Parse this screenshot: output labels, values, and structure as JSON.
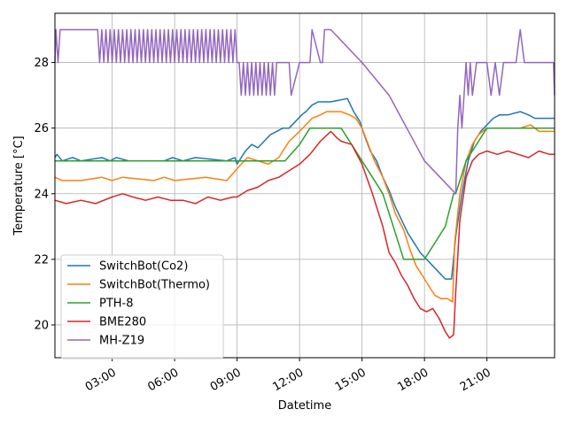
{
  "chart_data": {
    "type": "line",
    "title": "",
    "xlabel": "Datetime",
    "ylabel": "Temperature [°C]",
    "xlim": [
      0.25,
      24.25
    ],
    "ylim": [
      19,
      29.5
    ],
    "grid": true,
    "legend_position": "lower-left",
    "x_ticks": [
      {
        "value": 3,
        "label": "03:00"
      },
      {
        "value": 6,
        "label": "06:00"
      },
      {
        "value": 9,
        "label": "09:00"
      },
      {
        "value": 12,
        "label": "12:00"
      },
      {
        "value": 15,
        "label": "15:00"
      },
      {
        "value": 18,
        "label": "18:00"
      },
      {
        "value": 21,
        "label": "21:00"
      }
    ],
    "y_ticks": [
      {
        "value": 20,
        "label": "20"
      },
      {
        "value": 22,
        "label": "22"
      },
      {
        "value": 24,
        "label": "24"
      },
      {
        "value": 26,
        "label": "26"
      },
      {
        "value": 28,
        "label": "28"
      }
    ],
    "series": [
      {
        "name": "SwitchBot(Co2)",
        "color": "#1f77b4",
        "x": [
          0.25,
          0.35,
          0.6,
          1.1,
          1.5,
          2.5,
          2.9,
          3.2,
          3.8,
          5.5,
          5.9,
          6.4,
          7.0,
          8.5,
          8.9,
          9.0,
          9.2,
          9.4,
          9.7,
          10.0,
          10.3,
          10.6,
          10.9,
          11.2,
          11.5,
          11.8,
          12.1,
          12.3,
          12.6,
          12.9,
          13.2,
          13.5,
          14.3,
          14.6,
          14.9,
          15.1,
          15.4,
          15.7,
          16.0,
          16.3,
          16.6,
          16.9,
          17.2,
          17.5,
          17.8,
          18.1,
          18.4,
          18.7,
          19.0,
          19.3,
          19.5,
          19.8,
          20.1,
          20.4,
          20.7,
          21.0,
          21.3,
          21.6,
          22.0,
          22.6,
          23.0,
          23.3,
          23.7,
          24.25
        ],
        "y": [
          25.1,
          25.2,
          25.0,
          25.1,
          25.0,
          25.1,
          25.0,
          25.1,
          25.0,
          25.0,
          25.1,
          25.0,
          25.1,
          25.0,
          25.1,
          24.9,
          25.1,
          25.3,
          25.5,
          25.4,
          25.6,
          25.8,
          25.9,
          26.0,
          26.0,
          26.2,
          26.4,
          26.5,
          26.7,
          26.8,
          26.8,
          26.8,
          26.9,
          26.5,
          26.2,
          25.8,
          25.3,
          25.0,
          24.5,
          24.1,
          23.6,
          23.2,
          22.8,
          22.5,
          22.2,
          22.0,
          21.8,
          21.6,
          21.4,
          21.4,
          22.7,
          24.0,
          25.0,
          25.6,
          25.9,
          26.1,
          26.3,
          26.4,
          26.4,
          26.5,
          26.4,
          26.3,
          26.3,
          26.3
        ]
      },
      {
        "name": "SwitchBot(Thermo)",
        "color": "#ff7f0e",
        "x": [
          0.25,
          0.6,
          1.5,
          2.5,
          3.0,
          3.5,
          5.0,
          5.5,
          6.0,
          7.5,
          8.5,
          9.2,
          9.5,
          10.0,
          10.5,
          11.0,
          11.5,
          12.0,
          12.3,
          12.6,
          13.0,
          13.3,
          13.6,
          14.0,
          14.4,
          14.7,
          15.0,
          15.3,
          15.6,
          16.0,
          16.3,
          16.6,
          17.0,
          17.3,
          17.6,
          17.9,
          18.2,
          18.5,
          18.8,
          19.1,
          19.35,
          19.45,
          19.7,
          20.0,
          20.3,
          20.6,
          21.0,
          21.5,
          22.0,
          22.6,
          23.1,
          23.5,
          24.25
        ],
        "y": [
          24.5,
          24.4,
          24.4,
          24.5,
          24.4,
          24.5,
          24.4,
          24.5,
          24.4,
          24.5,
          24.4,
          24.9,
          25.1,
          25.0,
          24.9,
          25.1,
          25.6,
          25.9,
          26.1,
          26.3,
          26.4,
          26.5,
          26.5,
          26.5,
          26.4,
          26.3,
          26.0,
          25.5,
          25.0,
          24.5,
          24.0,
          23.4,
          22.9,
          22.3,
          21.8,
          21.5,
          21.2,
          20.9,
          20.8,
          20.8,
          20.7,
          22.5,
          24.0,
          25.0,
          25.5,
          25.8,
          26.0,
          26.0,
          26.0,
          26.0,
          26.1,
          25.9,
          25.9
        ]
      },
      {
        "name": "PTH-8",
        "color": "#2ca02c",
        "x": [
          0.25,
          2.0,
          4.0,
          6.0,
          8.0,
          10.0,
          11.0,
          11.3,
          12.0,
          12.5,
          13.0,
          13.5,
          14.0,
          14.5,
          15.0,
          15.5,
          16.0,
          16.5,
          17.0,
          17.5,
          18.0,
          18.5,
          19.0,
          19.4,
          19.5,
          20.0,
          20.5,
          21.0,
          22.0,
          23.0,
          24.25
        ],
        "y": [
          25.0,
          25.0,
          25.0,
          25.0,
          25.0,
          25.0,
          25.0,
          25.0,
          25.5,
          26.0,
          26.0,
          26.0,
          26.0,
          25.5,
          25.0,
          24.5,
          24.0,
          23.0,
          22.0,
          22.0,
          22.0,
          22.5,
          23.0,
          24.0,
          24.0,
          25.0,
          25.5,
          26.0,
          26.0,
          26.0,
          26.0
        ]
      },
      {
        "name": "BME280",
        "color": "#d62728",
        "x": [
          0.25,
          0.8,
          1.5,
          2.2,
          3.0,
          3.5,
          4.0,
          4.6,
          5.2,
          5.8,
          6.4,
          7.0,
          7.6,
          8.2,
          8.8,
          9.0,
          9.5,
          10.0,
          10.5,
          11.0,
          11.5,
          12.0,
          12.5,
          13.0,
          13.5,
          13.8,
          14.0,
          14.5,
          15.0,
          15.5,
          16.0,
          16.3,
          16.6,
          16.9,
          17.2,
          17.5,
          17.8,
          18.1,
          18.4,
          18.7,
          19.0,
          19.2,
          19.4,
          19.5,
          19.7,
          20.0,
          20.3,
          20.6,
          21.0,
          21.5,
          22.0,
          22.5,
          23.0,
          23.5,
          24.0,
          24.25
        ],
        "y": [
          23.8,
          23.7,
          23.8,
          23.7,
          23.9,
          24.0,
          23.9,
          23.8,
          23.9,
          23.8,
          23.8,
          23.7,
          23.9,
          23.8,
          23.9,
          23.9,
          24.1,
          24.2,
          24.4,
          24.5,
          24.7,
          24.9,
          25.2,
          25.6,
          25.9,
          25.7,
          25.6,
          25.5,
          24.9,
          24.0,
          23.0,
          22.2,
          21.9,
          21.5,
          21.2,
          20.8,
          20.5,
          20.4,
          20.5,
          20.2,
          19.8,
          19.6,
          19.7,
          21.0,
          23.2,
          24.5,
          25.0,
          25.2,
          25.3,
          25.2,
          25.3,
          25.2,
          25.1,
          25.3,
          25.2,
          25.2
        ]
      },
      {
        "name": "MH-Z19",
        "color": "#9467bd",
        "x": [
          0.25,
          0.3,
          0.4,
          0.5,
          0.6,
          0.7,
          2.3,
          2.4,
          2.5,
          2.6,
          2.7,
          2.8,
          2.9,
          3.0,
          3.1,
          3.2,
          3.3,
          3.4,
          3.5,
          3.6,
          3.7,
          3.8,
          3.9,
          4.0,
          4.1,
          4.2,
          4.3,
          4.4,
          4.5,
          4.6,
          4.7,
          4.8,
          4.9,
          5.0,
          5.1,
          5.2,
          5.3,
          5.4,
          5.5,
          5.6,
          5.7,
          5.8,
          5.9,
          6.0,
          6.1,
          6.2,
          6.3,
          6.4,
          6.5,
          6.6,
          6.7,
          6.8,
          6.9,
          7.0,
          7.1,
          7.2,
          7.3,
          7.4,
          7.5,
          7.6,
          7.7,
          7.8,
          7.9,
          8.0,
          8.1,
          8.2,
          8.3,
          8.4,
          8.5,
          8.6,
          8.7,
          8.8,
          8.9,
          9.0,
          9.1,
          9.2,
          9.3,
          9.4,
          9.5,
          9.6,
          9.7,
          9.8,
          9.9,
          10.0,
          10.1,
          10.2,
          10.3,
          10.4,
          10.5,
          10.6,
          10.7,
          10.8,
          10.9,
          11.5,
          11.6,
          12.0,
          12.5,
          12.6,
          13.0,
          13.1,
          13.2,
          13.3,
          13.5,
          15.0,
          16.3,
          18.0,
          19.5,
          19.6,
          19.7,
          19.8,
          19.9,
          20.0,
          20.1,
          20.2,
          20.3,
          20.5,
          20.8,
          21.0,
          21.2,
          21.4,
          21.6,
          21.8,
          22.0,
          22.2,
          22.4,
          22.6,
          22.8,
          23.0,
          23.2,
          23.4,
          23.6,
          24.0,
          24.2,
          24.25
        ],
        "y": [
          28.0,
          29.0,
          28.0,
          29.0,
          29.0,
          29.0,
          29.0,
          28.0,
          29.0,
          28.0,
          29.0,
          28.0,
          29.0,
          28.0,
          29.0,
          28.0,
          29.0,
          28.0,
          29.0,
          28.0,
          29.0,
          28.0,
          29.0,
          28.0,
          29.0,
          28.0,
          29.0,
          28.0,
          29.0,
          28.0,
          29.0,
          28.0,
          29.0,
          28.0,
          29.0,
          28.0,
          29.0,
          28.0,
          29.0,
          28.0,
          29.0,
          28.0,
          29.0,
          28.0,
          29.0,
          28.0,
          29.0,
          28.0,
          29.0,
          28.0,
          29.0,
          28.0,
          29.0,
          28.0,
          29.0,
          28.0,
          29.0,
          28.0,
          29.0,
          28.0,
          29.0,
          28.0,
          29.0,
          28.0,
          29.0,
          28.0,
          29.0,
          28.0,
          29.0,
          28.0,
          29.0,
          28.0,
          29.0,
          28.0,
          28.0,
          27.0,
          28.0,
          27.0,
          28.0,
          27.0,
          28.0,
          27.0,
          28.0,
          27.0,
          28.0,
          27.0,
          28.0,
          27.0,
          28.0,
          27.0,
          28.0,
          27.0,
          28.0,
          28.0,
          27.0,
          28.0,
          28.0,
          29.0,
          28.0,
          28.0,
          29.0,
          29.0,
          29.0,
          28.0,
          27.0,
          25.0,
          24.0,
          26.0,
          27.0,
          26.0,
          27.0,
          28.0,
          27.0,
          28.0,
          27.0,
          28.0,
          28.0,
          28.0,
          27.0,
          28.0,
          27.0,
          28.0,
          28.0,
          28.0,
          28.0,
          29.0,
          28.0,
          28.0,
          28.0,
          28.0,
          28.0,
          28.0,
          28.0,
          27.0
        ]
      }
    ]
  }
}
